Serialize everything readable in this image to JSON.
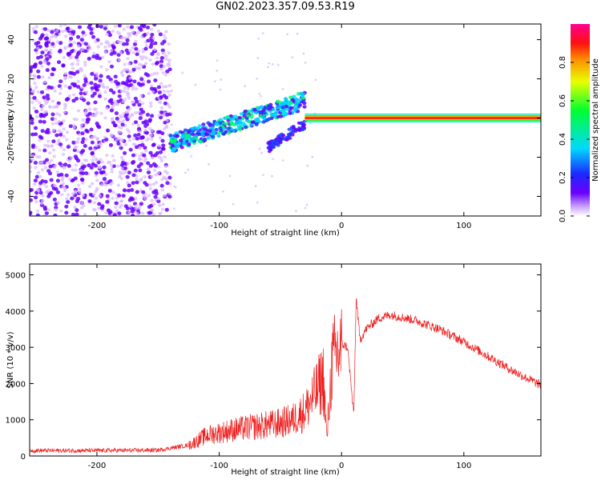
{
  "title": "GN02.2023.357.09.53.R19",
  "colors": {
    "spectrogram_dots": "#6a00ff",
    "spectrogram_fade": "#d8b8ff",
    "snr_line": "#ee2020",
    "axis": "#000000"
  },
  "chart_data": [
    {
      "type": "heatmap",
      "xlabel": "Height of straight line (km)",
      "ylabel": "Frequency (Hz)",
      "xlim": [
        -255,
        163
      ],
      "ylim": [
        -50,
        48
      ],
      "xticks": [
        -200,
        -100,
        0,
        100
      ],
      "yticks": [
        -40,
        -20,
        0,
        20,
        40
      ],
      "grid": false,
      "features": [
        {
          "name": "noise",
          "x_range": [
            -255,
            -140
          ],
          "y_range": [
            -50,
            48
          ]
        },
        {
          "name": "rising streak",
          "x_range": [
            -140,
            -30
          ],
          "y_range": [
            -15,
            15
          ]
        },
        {
          "name": "carrier",
          "x_range": [
            -30,
            163
          ],
          "y_value": 0
        }
      ],
      "colorbar": {
        "label": "Normalized spectral amplitude",
        "ticks": [
          0.0,
          0.2,
          0.4,
          0.6,
          0.8
        ],
        "range": [
          0,
          1
        ]
      }
    },
    {
      "type": "line",
      "xlabel": "Height of straight line (km)",
      "ylabel": "SNR (10 * v/v)",
      "xlim": [
        -255,
        163
      ],
      "ylim": [
        0,
        5300
      ],
      "xticks": [
        -200,
        -100,
        0,
        100
      ],
      "yticks": [
        0,
        1000,
        2000,
        3000,
        4000,
        5000
      ],
      "grid": false,
      "envelope": {
        "x": [
          -255,
          -200,
          -150,
          -125,
          -110,
          -90,
          -70,
          -50,
          -40,
          -30,
          -20,
          -15,
          -12,
          -8,
          -5,
          0,
          5,
          10,
          12,
          15,
          20,
          30,
          40,
          60,
          80,
          100,
          120,
          140,
          163
        ],
        "y": [
          150,
          150,
          160,
          300,
          600,
          750,
          850,
          950,
          1050,
          1300,
          1900,
          2300,
          500,
          2600,
          2900,
          3100,
          3000,
          1100,
          4400,
          3200,
          3500,
          3800,
          3900,
          3750,
          3500,
          3150,
          2750,
          2350,
          1950
        ]
      }
    }
  ]
}
